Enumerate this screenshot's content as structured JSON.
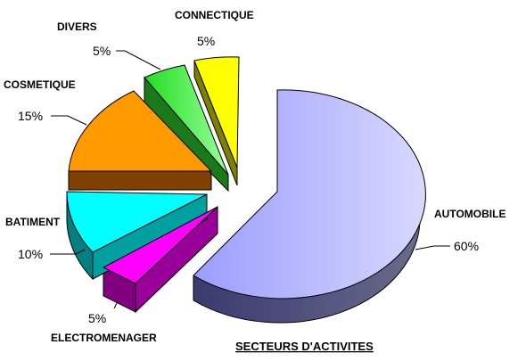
{
  "chart_data": {
    "type": "pie",
    "title": "SECTEURS D'ACTIVITES",
    "exploded": true,
    "three_d": true,
    "slices": [
      {
        "name": "AUTOMOBILE",
        "value": 60,
        "label": "60%",
        "color": "#c8c8ff"
      },
      {
        "name": "ELECTROMENAGER",
        "value": 5,
        "label": "5%",
        "color": "#ff00ff"
      },
      {
        "name": "BATIMENT",
        "value": 10,
        "label": "10%",
        "color": "#00ffff"
      },
      {
        "name": "COSMETIQUE",
        "value": 15,
        "label": "15%",
        "color": "#ff9900"
      },
      {
        "name": "DIVERS",
        "value": 5,
        "label": "5%",
        "color": "#33ff33"
      },
      {
        "name": "CONNECTIQUE",
        "value": 5,
        "label": "5%",
        "color": "#ffff00"
      }
    ]
  }
}
